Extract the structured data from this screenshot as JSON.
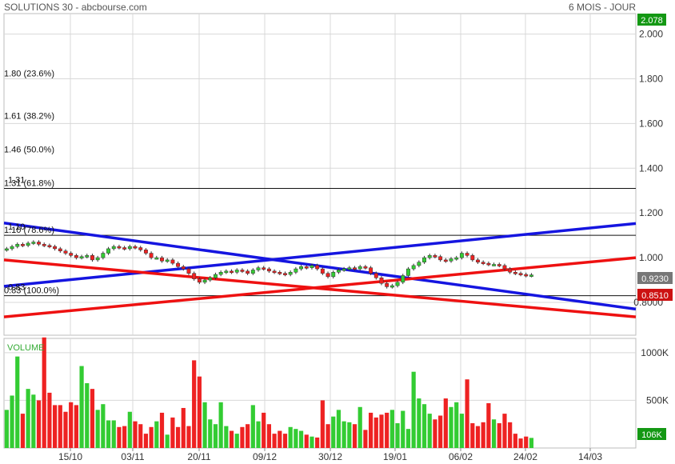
{
  "header": {
    "title": "SOLUTIONS 30 - abcbourse.com",
    "period": "6 MOIS - JOUR"
  },
  "price_tags": {
    "high": "2.078",
    "last": "0.9230",
    "ref": "0.8510",
    "volume_last": "106K"
  },
  "volume_label": "VOLUME",
  "colors": {
    "up": "#33cc33",
    "down": "#ee2222",
    "trend_blue": "#1515e0",
    "trend_red": "#ee1111",
    "grid": "#d8d8d8",
    "tag_green": "#149814",
    "tag_gray": "#777777",
    "tag_red": "#cc1111"
  },
  "chart_data": [
    {
      "type": "candlestick",
      "title": "SOLUTIONS 30 - abcbourse.com",
      "period": "6 MOIS - JOUR",
      "ylim": [
        0.72,
        2.08
      ],
      "y_ticks": [
        "2.000",
        "1.800",
        "1.600",
        "1.400",
        "1.200",
        "1.000",
        "0.8000"
      ],
      "x_ticks": [
        "15/10",
        "03/11",
        "20/11",
        "09/12",
        "30/12",
        "19/01",
        "06/02",
        "24/02",
        "14/03"
      ],
      "grid": true,
      "fibonacci_levels": [
        {
          "label": "1.80  (23.6%)",
          "value": 1.8,
          "line": false
        },
        {
          "label": "1.61  (38.2%)",
          "value": 1.61,
          "line": false
        },
        {
          "label": "1.46  (50.0%)",
          "value": 1.46,
          "line": false
        },
        {
          "label": "1.31  (61.8%)",
          "value": 1.31,
          "line": true,
          "overlap_label": "1.31"
        },
        {
          "label": "1.10  (78.6%)",
          "value": 1.1,
          "line": true,
          "overlap_label": "1.10"
        },
        {
          "label": "0.83  (100.0%)",
          "value": 0.83,
          "line": true,
          "overlap_label": "0.83"
        }
      ],
      "trendlines": [
        {
          "color": "blue",
          "from": [
            0,
            1.155
          ],
          "to": [
            118,
            0.77
          ]
        },
        {
          "color": "blue",
          "from": [
            0,
            0.872
          ],
          "to": [
            118,
            1.153
          ]
        },
        {
          "color": "red",
          "from": [
            0,
            0.99
          ],
          "to": [
            118,
            0.735
          ]
        },
        {
          "color": "red",
          "from": [
            0,
            0.735
          ],
          "to": [
            118,
            1.0
          ]
        }
      ],
      "closes": [
        1.04,
        1.05,
        1.06,
        1.055,
        1.065,
        1.07,
        1.06,
        1.055,
        1.05,
        1.04,
        1.03,
        1.02,
        1.01,
        1.0,
        1.005,
        1.01,
        0.99,
        1.0,
        1.02,
        1.04,
        1.05,
        1.045,
        1.04,
        1.05,
        1.045,
        1.035,
        1.02,
        1.0,
        1.0,
        0.985,
        0.99,
        0.975,
        0.96,
        0.95,
        0.93,
        0.905,
        0.89,
        0.9,
        0.91,
        0.925,
        0.935,
        0.94,
        0.935,
        0.945,
        0.94,
        0.93,
        0.945,
        0.955,
        0.95,
        0.94,
        0.935,
        0.93,
        0.925,
        0.935,
        0.95,
        0.96,
        0.955,
        0.965,
        0.95,
        0.93,
        0.915,
        0.935,
        0.945,
        0.95,
        0.955,
        0.95,
        0.96,
        0.955,
        0.93,
        0.91,
        0.885,
        0.87,
        0.875,
        0.89,
        0.92,
        0.95,
        0.965,
        0.98,
        1.0,
        1.01,
        1.005,
        0.99,
        0.985,
        0.995,
        1.0,
        1.02,
        1.01,
        0.99,
        0.98,
        0.975,
        0.97,
        0.97,
        0.965,
        0.95,
        0.935,
        0.93,
        0.925,
        0.92,
        0.923
      ]
    },
    {
      "type": "bar",
      "title": "VOLUME",
      "ylim": [
        0,
        1150
      ],
      "y_ticks": [
        "1000K",
        "500K"
      ],
      "values": [
        400,
        550,
        960,
        360,
        620,
        560,
        500,
        1160,
        580,
        450,
        450,
        380,
        480,
        450,
        860,
        680,
        620,
        400,
        460,
        290,
        290,
        220,
        230,
        380,
        280,
        250,
        150,
        220,
        280,
        370,
        140,
        320,
        220,
        420,
        230,
        920,
        750,
        480,
        300,
        250,
        480,
        230,
        180,
        150,
        220,
        250,
        450,
        280,
        370,
        250,
        150,
        180,
        150,
        220,
        200,
        180,
        140,
        120,
        110,
        500,
        250,
        330,
        400,
        280,
        270,
        250,
        430,
        190,
        370,
        320,
        350,
        370,
        400,
        260,
        390,
        200,
        800,
        520,
        460,
        360,
        300,
        340,
        520,
        430,
        480,
        360,
        720,
        260,
        230,
        270,
        470,
        300,
        260,
        360,
        270,
        150,
        100,
        120,
        106
      ],
      "last_label": "106K"
    }
  ]
}
